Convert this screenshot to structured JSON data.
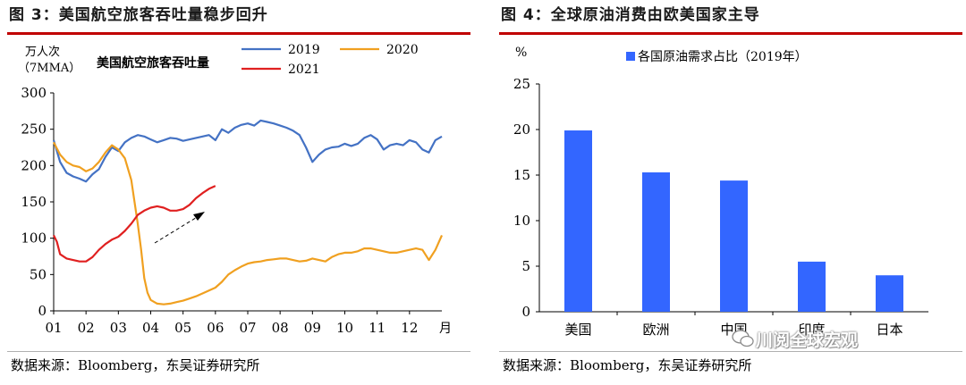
{
  "left": {
    "title": "图 3：美国航空旅客吞吐量稳步回升",
    "source": "数据来源：Bloomberg，东吴证券研究所",
    "ylabel_line1": "万人次",
    "ylabel_line2": "（7MMA）",
    "legend_title": "美国航空旅客吞吐量",
    "month_unit": "月"
  },
  "right": {
    "title": "图 4：全球原油消费由欧美国家主导",
    "source": "数据来源：Bloomberg，东吴证券研究所",
    "ylabel": "%"
  },
  "watermark": "川阅全球宏观",
  "chart_data": [
    {
      "type": "line",
      "xlabel": "月",
      "ylabel": "万人次（7MMA）",
      "categories": [
        "01",
        "02",
        "03",
        "04",
        "05",
        "06",
        "07",
        "08",
        "09",
        "10",
        "11",
        "12"
      ],
      "ylim": [
        0,
        300
      ],
      "yticks": [
        0,
        50,
        100,
        150,
        200,
        250,
        300
      ],
      "legend_placement": "top",
      "series": [
        {
          "name": "2019",
          "color": "#4472c4",
          "x": [
            1.0,
            1.2,
            1.4,
            1.6,
            1.8,
            2.0,
            2.2,
            2.4,
            2.6,
            2.8,
            3.0,
            3.2,
            3.4,
            3.6,
            3.8,
            4.0,
            4.2,
            4.4,
            4.6,
            4.8,
            5.0,
            5.2,
            5.4,
            5.6,
            5.8,
            6.0,
            6.2,
            6.4,
            6.6,
            6.8,
            7.0,
            7.2,
            7.4,
            7.6,
            7.8,
            8.0,
            8.2,
            8.4,
            8.6,
            8.8,
            9.0,
            9.2,
            9.4,
            9.6,
            9.8,
            10.0,
            10.2,
            10.4,
            10.6,
            10.8,
            11.0,
            11.2,
            11.4,
            11.6,
            11.8,
            12.0,
            12.2,
            12.4,
            12.6,
            12.8,
            13.0
          ],
          "y": [
            235,
            205,
            190,
            185,
            182,
            178,
            188,
            195,
            212,
            225,
            220,
            232,
            238,
            242,
            240,
            236,
            232,
            235,
            238,
            237,
            234,
            236,
            238,
            240,
            242,
            235,
            250,
            245,
            252,
            256,
            258,
            255,
            262,
            260,
            258,
            255,
            252,
            248,
            242,
            225,
            205,
            215,
            222,
            225,
            226,
            230,
            227,
            230,
            238,
            242,
            236,
            222,
            228,
            230,
            228,
            235,
            232,
            222,
            218,
            235,
            240
          ]
        },
        {
          "name": "2020",
          "color": "#f0a020",
          "x": [
            1.0,
            1.2,
            1.4,
            1.6,
            1.8,
            2.0,
            2.2,
            2.4,
            2.6,
            2.8,
            3.0,
            3.2,
            3.4,
            3.5,
            3.6,
            3.7,
            3.8,
            3.9,
            4.0,
            4.2,
            4.4,
            4.6,
            4.8,
            5.0,
            5.2,
            5.4,
            5.6,
            5.8,
            6.0,
            6.2,
            6.4,
            6.6,
            6.8,
            7.0,
            7.2,
            7.4,
            7.6,
            7.8,
            8.0,
            8.2,
            8.4,
            8.6,
            8.8,
            9.0,
            9.2,
            9.4,
            9.6,
            9.8,
            10.0,
            10.2,
            10.4,
            10.6,
            10.8,
            11.0,
            11.2,
            11.4,
            11.6,
            11.8,
            12.0,
            12.2,
            12.4,
            12.6,
            12.8,
            13.0
          ],
          "y": [
            232,
            215,
            205,
            200,
            198,
            192,
            196,
            205,
            218,
            228,
            222,
            210,
            180,
            150,
            120,
            85,
            45,
            25,
            15,
            10,
            9,
            10,
            12,
            14,
            17,
            20,
            24,
            28,
            32,
            40,
            50,
            56,
            61,
            65,
            67,
            68,
            70,
            71,
            72,
            72,
            70,
            68,
            69,
            72,
            70,
            68,
            74,
            78,
            80,
            80,
            82,
            86,
            86,
            84,
            82,
            80,
            80,
            82,
            84,
            86,
            84,
            70,
            84,
            104
          ]
        },
        {
          "name": "2021",
          "color": "#e02020",
          "x": [
            1.0,
            1.1,
            1.2,
            1.4,
            1.6,
            1.8,
            2.0,
            2.2,
            2.4,
            2.6,
            2.8,
            3.0,
            3.2,
            3.4,
            3.6,
            3.8,
            4.0,
            4.2,
            4.4,
            4.6,
            4.8,
            5.0,
            5.2,
            5.4,
            5.6,
            5.8,
            6.0
          ],
          "y": [
            104,
            95,
            78,
            72,
            70,
            68,
            68,
            74,
            84,
            92,
            98,
            102,
            110,
            120,
            132,
            138,
            142,
            144,
            142,
            138,
            138,
            140,
            146,
            155,
            162,
            168,
            172
          ]
        }
      ]
    },
    {
      "type": "bar",
      "series_name": "各国原油需求占比（2019年）",
      "categories": [
        "美国",
        "欧洲",
        "中国",
        "印度",
        "日本"
      ],
      "values": [
        19.9,
        15.3,
        14.4,
        5.5,
        4.0
      ],
      "ylabel": "%",
      "ylim": [
        0,
        25
      ],
      "yticks": [
        0,
        5,
        10,
        15,
        20,
        25
      ],
      "color": "#3366ff",
      "legend_placement": "top-center"
    }
  ]
}
